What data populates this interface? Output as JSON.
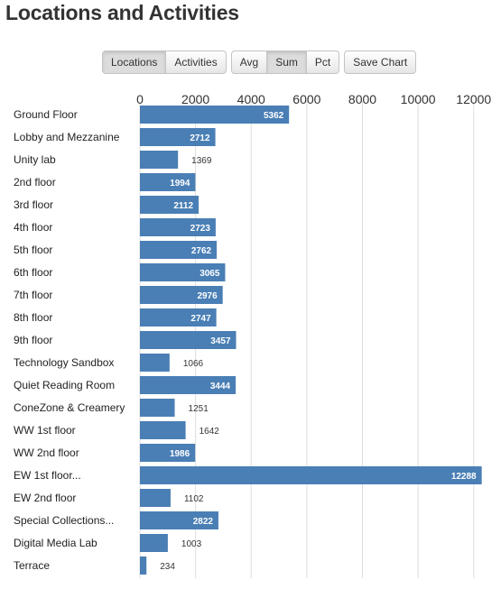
{
  "page": {
    "title": "Locations and Activities"
  },
  "toolbar": {
    "groups": [
      {
        "buttons": [
          {
            "label": "Locations",
            "active": true
          },
          {
            "label": "Activities",
            "active": false
          }
        ]
      },
      {
        "buttons": [
          {
            "label": "Avg",
            "active": false
          },
          {
            "label": "Sum",
            "active": true
          },
          {
            "label": "Pct",
            "active": false
          }
        ]
      }
    ],
    "save_label": "Save Chart"
  },
  "chart_data": {
    "type": "bar",
    "orientation": "horizontal",
    "categories": [
      "Ground Floor",
      "Lobby and Mezzanine",
      "Unity lab",
      "2nd floor",
      "3rd floor",
      "4th floor",
      "5th floor",
      "6th floor",
      "7th floor",
      "8th floor",
      "9th floor",
      "Technology Sandbox",
      "Quiet Reading Room",
      "ConeZone & Creamery",
      "WW 1st floor",
      "WW 2nd floor",
      "EW 1st floor...",
      "EW 2nd floor",
      "Special Collections...",
      "Digital Media Lab",
      "Terrace"
    ],
    "values": [
      5362,
      2712,
      1369,
      1994,
      2112,
      2723,
      2762,
      3065,
      2976,
      2747,
      3457,
      1066,
      3444,
      1251,
      1642,
      1986,
      12288,
      1102,
      2822,
      1003,
      234
    ],
    "xticks": [
      0,
      2000,
      4000,
      6000,
      8000,
      10000,
      12000
    ],
    "xlim": [
      0,
      12300
    ],
    "grid": true,
    "bar_color": "#4a7fb5",
    "grid_color": "#dddddd"
  }
}
